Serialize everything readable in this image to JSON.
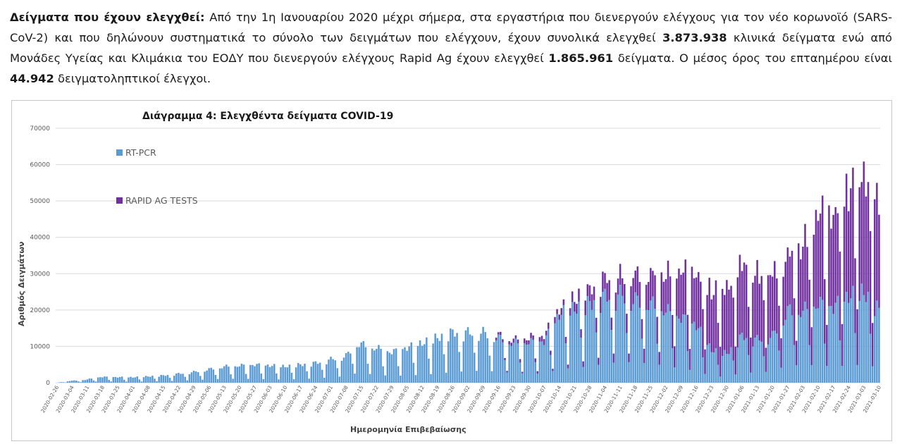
{
  "intro": {
    "heading": "Δείγματα που έχουν ελεγχθεί",
    "colon": ":",
    "text_1": " Από την 1η Ιανουαρίου 2020 μέχρι σήμερα, στα εργαστήρια που διενεργούν ελέγχους για τον νέο κορωνοϊό (SARS-CoV-2) και που δηλώνουν συστηματικά το σύνολο των δειγμάτων που ελέγχουν, έχουν συνολικά ελεγχθεί ",
    "total_pcr": "3.873.938",
    "text_2": " κλινικά δείγματα ενώ από Μονάδες Υγείας και Κλιμάκια του ΕΟΔΥ που διενεργούν ελέγχους Rapid Ag έχουν ελεγχθεί ",
    "total_rapid": "1.865.961",
    "text_3": " δείγματα. Ο μέσος όρος του επταημέρου είναι ",
    "avg7": "44.942",
    "text_4": " δειγματοληπτικοί έλεγχοι."
  },
  "colors": {
    "pcr": "#5b9bd5",
    "rapid": "#7030a0",
    "grid": "#d9d9d9",
    "frame": "#c8c8c8"
  },
  "chart_data": {
    "type": "bar",
    "stacked": true,
    "title": "Διάγραμμα 4: Ελεγχθέντα δείγματα COVID-19",
    "xlabel": "Ημερομηνία Επιβεβαίωσης",
    "ylabel": "Αριθμός Δειγμάτων",
    "ylim": [
      0,
      70000
    ],
    "yticks": [
      0,
      10000,
      20000,
      30000,
      40000,
      50000,
      60000,
      70000
    ],
    "grid": true,
    "legend_position": "top-left",
    "x_start": "2020-02-26",
    "x_end": "2021-03-10",
    "x_tick_labels": [
      "2020-02-26",
      "2020-03-04",
      "2020-03-11",
      "2020-03-18",
      "2020-03-25",
      "2020-04-01",
      "2020-04-08",
      "2020-04-15",
      "2020-04-22",
      "2020-04-29",
      "2020-05-06",
      "2020-05-13",
      "2020-05-20",
      "2020-05-27",
      "2020-06-03",
      "2020-06-10",
      "2020-06-17",
      "2020-06-24",
      "2020-07-01",
      "2020-07-08",
      "2020-07-15",
      "2020-07-22",
      "2020-07-29",
      "2020-08-05",
      "2020-08-12",
      "2020-08-19",
      "2020-08-26",
      "2020-09-02",
      "2020-09-09",
      "2020-09-16",
      "2020-09-23",
      "2020-09-30",
      "2020-10-07",
      "2020-10-14",
      "2020-10-21",
      "2020-10-28",
      "2020-11-04",
      "2020-11-11",
      "2020-11-18",
      "2020-11-25",
      "2020-12-02",
      "2020-12-09",
      "2020-12-16",
      "2020-12-23",
      "2020-12-30",
      "2021-01-06",
      "2021-01-13",
      "2021-01-20",
      "2021-01-27",
      "2021-02-03",
      "2021-02-10",
      "2021-02-17",
      "2021-02-24",
      "2021-03-03",
      "2021-03-10"
    ],
    "series": [
      {
        "name": "RT-PCR",
        "anchors": [
          [
            "2020-02-26",
            0
          ],
          [
            "2020-03-03",
            500
          ],
          [
            "2020-03-10",
            800
          ],
          [
            "2020-03-17",
            1600
          ],
          [
            "2020-04-01",
            1500
          ],
          [
            "2020-04-15",
            2000
          ],
          [
            "2020-04-29",
            3000
          ],
          [
            "2020-05-13",
            4500
          ],
          [
            "2020-05-27",
            5000
          ],
          [
            "2020-06-10",
            4500
          ],
          [
            "2020-06-24",
            5500
          ],
          [
            "2020-07-08",
            7500
          ],
          [
            "2020-07-13",
            11000
          ],
          [
            "2020-07-29",
            8500
          ],
          [
            "2020-08-12",
            11000
          ],
          [
            "2020-08-26",
            14000
          ],
          [
            "2020-09-09",
            14000
          ],
          [
            "2020-09-23",
            11000
          ],
          [
            "2020-10-07",
            11500
          ],
          [
            "2020-10-14",
            19000
          ],
          [
            "2020-10-28",
            22000
          ],
          [
            "2020-11-04",
            24000
          ],
          [
            "2020-11-11",
            24500
          ],
          [
            "2020-11-18",
            23000
          ],
          [
            "2020-11-25",
            22000
          ],
          [
            "2020-12-02",
            20000
          ],
          [
            "2020-12-09",
            18000
          ],
          [
            "2020-12-16",
            16000
          ],
          [
            "2020-12-23",
            9000
          ],
          [
            "2020-12-30",
            8000
          ],
          [
            "2021-01-06",
            13000
          ],
          [
            "2021-01-13",
            12000
          ],
          [
            "2021-01-20",
            13000
          ],
          [
            "2021-01-27",
            20000
          ],
          [
            "2021-02-03",
            20000
          ],
          [
            "2021-02-10",
            22000
          ],
          [
            "2021-02-17",
            21000
          ],
          [
            "2021-02-24",
            24000
          ],
          [
            "2021-03-03",
            25000
          ],
          [
            "2021-03-10",
            20000
          ]
        ]
      },
      {
        "name": "RAPID AG TESTS",
        "anchors": [
          [
            "2020-02-26",
            0
          ],
          [
            "2020-09-14",
            0
          ],
          [
            "2020-09-15",
            700
          ],
          [
            "2020-10-07",
            1500
          ],
          [
            "2020-10-14",
            1500
          ],
          [
            "2020-10-28",
            4000
          ],
          [
            "2020-11-04",
            5000
          ],
          [
            "2020-11-11",
            5000
          ],
          [
            "2020-11-18",
            7000
          ],
          [
            "2020-11-25",
            8000
          ],
          [
            "2020-12-02",
            10000
          ],
          [
            "2020-12-09",
            13000
          ],
          [
            "2020-12-16",
            14000
          ],
          [
            "2020-12-23",
            16000
          ],
          [
            "2020-12-30",
            18000
          ],
          [
            "2021-01-06",
            20000
          ],
          [
            "2021-01-13",
            18000
          ],
          [
            "2021-01-20",
            17000
          ],
          [
            "2021-01-27",
            15000
          ],
          [
            "2021-02-03",
            18000
          ],
          [
            "2021-02-10",
            25000
          ],
          [
            "2021-02-17",
            25000
          ],
          [
            "2021-02-24",
            29000
          ],
          [
            "2021-03-03",
            32000
          ],
          [
            "2021-03-10",
            30000
          ]
        ]
      }
    ]
  }
}
